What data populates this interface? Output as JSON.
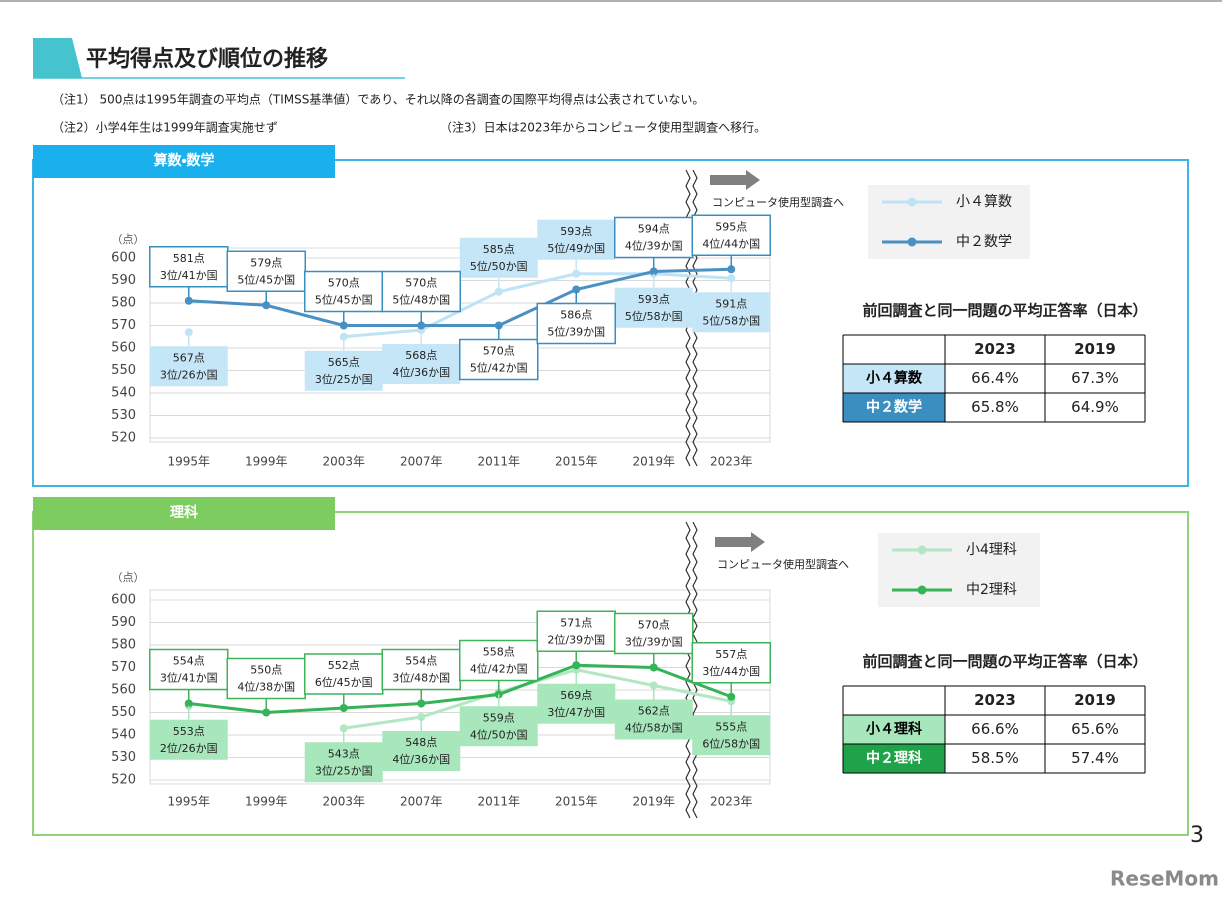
{
  "title": "平均得点及び順位の推移",
  "notes": [
    "（注1） 500点は1995年調査の平均点（TIMSS基準値）であり、それ以降の各調査の国際平均得点は公表されていない。",
    "（注2）小学4年生は1999年調査実施せず",
    "（注3）日本は2023年からコンピュータ使用型調査へ移行。"
  ],
  "page_number": "3",
  "logo": "ReseMom",
  "chart_data": [
    {
      "type": "line",
      "title": "算数・数学",
      "y_unit_label": "（点）",
      "categories": [
        "1995年",
        "1999年",
        "2003年",
        "2007年",
        "2011年",
        "2015年",
        "2019年",
        "2023年"
      ],
      "series": [
        {
          "name": "小４算数",
          "color": "#bde3f5",
          "values": [
            567,
            null,
            565,
            568,
            585,
            593,
            593,
            591
          ],
          "value_labels": [
            "567点",
            null,
            "565点",
            "568点",
            "585点",
            "593点",
            "593点",
            "591点"
          ],
          "ranks": [
            "3位/26か国",
            null,
            "3位/25か国",
            "4位/36か国",
            "5位/50か国",
            "5位/49か国",
            "5位/58か国",
            "5位/58か国"
          ]
        },
        {
          "name": "中２数学",
          "color": "#4a90c2",
          "values": [
            581,
            579,
            570,
            570,
            570,
            586,
            594,
            595
          ],
          "value_labels": [
            "581点",
            "579点",
            "570点",
            "570点",
            "570点",
            "586点",
            "594点",
            "595点"
          ],
          "ranks": [
            "3位/41か国",
            "5位/45か国",
            "5位/45か国",
            "5位/48か国",
            "5位/42か国",
            "5位/39か国",
            "4位/39か国",
            "4位/44か国"
          ]
        }
      ],
      "ylim": [
        520,
        600
      ],
      "yticks": [
        520,
        530,
        540,
        550,
        560,
        570,
        580,
        590,
        600
      ],
      "grid": true,
      "annotation": "コンピュータ使用型調査へ",
      "table": {
        "title": "前回調査と同一問題の平均正答率（日本）",
        "header": [
          "2023",
          "2019"
        ],
        "rows": [
          {
            "label": "小４算数",
            "cells": [
              "66.4%",
              "67.3%"
            ]
          },
          {
            "label": "中２数学",
            "cells": [
              "65.8%",
              "64.9%"
            ]
          }
        ]
      }
    },
    {
      "type": "line",
      "title": "理科",
      "y_unit_label": "（点）",
      "categories": [
        "1995年",
        "1999年",
        "2003年",
        "2007年",
        "2011年",
        "2015年",
        "2019年",
        "2023年"
      ],
      "series": [
        {
          "name": "小4理科",
          "color": "#b3e6c2",
          "values": [
            553,
            null,
            543,
            548,
            559,
            569,
            562,
            555
          ],
          "value_labels": [
            "553点",
            null,
            "543点",
            "548点",
            "559点",
            "569点",
            "562点",
            "555点"
          ],
          "ranks": [
            "2位/26か国",
            null,
            "3位/25か国",
            "4位/36か国",
            "4位/50か国",
            "3位/47か国",
            "4位/58か国",
            "6位/58か国"
          ]
        },
        {
          "name": "中2理科",
          "color": "#35b357",
          "values": [
            554,
            550,
            552,
            554,
            558,
            571,
            570,
            557
          ],
          "value_labels": [
            "554点",
            "550点",
            "552点",
            "554点",
            "558点",
            "571点",
            "570点",
            "557点"
          ],
          "ranks": [
            "3位/41か国",
            "4位/38か国",
            "6位/45か国",
            "3位/48か国",
            "4位/42か国",
            "2位/39か国",
            "3位/39か国",
            "3位/44か国"
          ]
        }
      ],
      "ylim": [
        520,
        600
      ],
      "yticks": [
        520,
        530,
        540,
        550,
        560,
        570,
        580,
        590,
        600
      ],
      "grid": true,
      "annotation": "コンピュータ使用型調査へ",
      "table": {
        "title": "前回調査と同一問題の平均正答率（日本）",
        "header": [
          "2023",
          "2019"
        ],
        "rows": [
          {
            "label": "小４理科",
            "cells": [
              "66.6%",
              "65.6%"
            ]
          },
          {
            "label": "中２理科",
            "cells": [
              "58.5%",
              "57.4%"
            ]
          }
        ]
      }
    }
  ]
}
